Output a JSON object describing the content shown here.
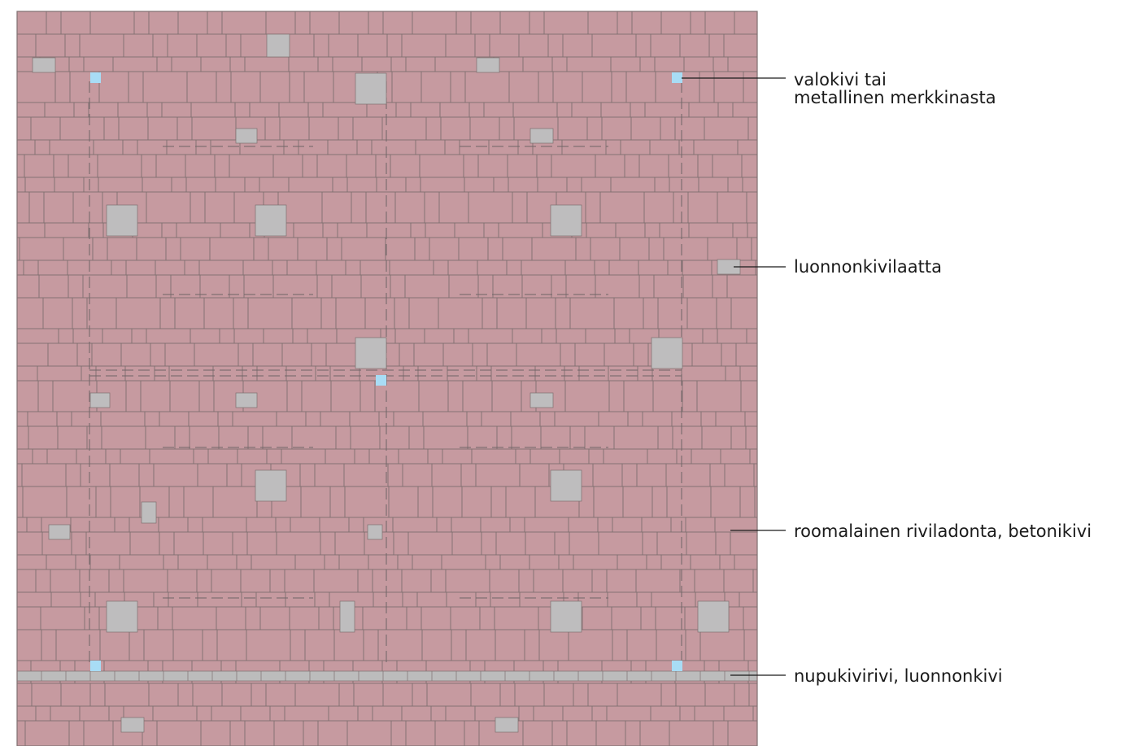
{
  "diagram": {
    "colors": {
      "paving": "#c69aa0",
      "joint": "#7f6f70",
      "stone_slab": "#bebdbe",
      "light_stone": "#a8dcf5",
      "edge_row": "#bcbcbc",
      "guide_line": "#6f6466",
      "leader_line": "#1a1a1a",
      "background": "#ffffff"
    },
    "callouts": [
      {
        "id": "light-stone",
        "lines": [
          "valokivi tai",
          "metallinen merkkinasta"
        ]
      },
      {
        "id": "natural-stone-slab",
        "lines": [
          "luonnonkivilaatta"
        ]
      },
      {
        "id": "roman-bond-concrete",
        "lines": [
          "roomalainen riviladonta, betonikivi"
        ]
      },
      {
        "id": "cobble-row",
        "lines": [
          "nupukivirivi, luonnonkivi"
        ]
      }
    ]
  }
}
